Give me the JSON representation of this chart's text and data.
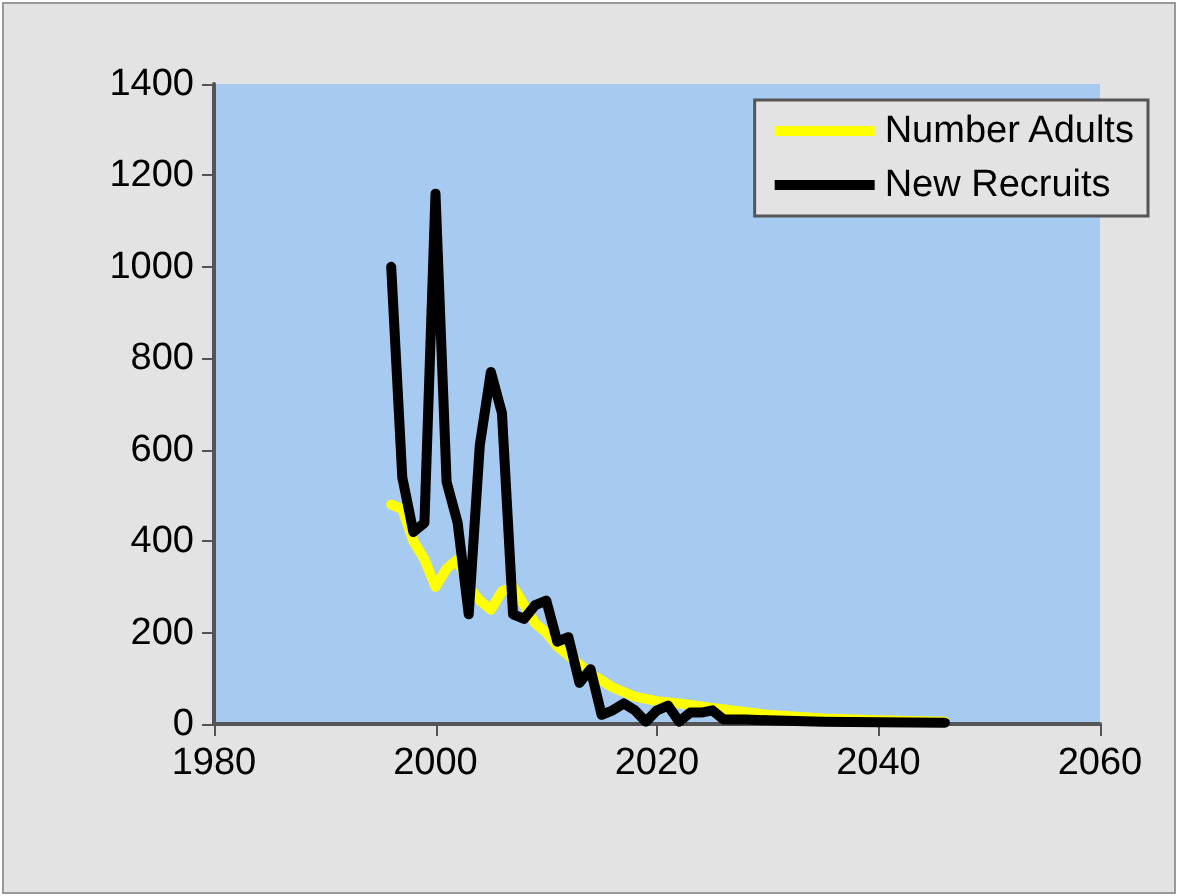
{
  "chart_data": {
    "type": "line",
    "xlim": [
      1980,
      2060
    ],
    "xticks": [
      1980,
      2000,
      2020,
      2040,
      2060
    ],
    "ylim": [
      0,
      1400
    ],
    "yticks": [
      0,
      200,
      400,
      600,
      800,
      1000,
      1200,
      1400
    ],
    "grid": false,
    "legend": "top right",
    "marker": "none",
    "series": [
      {
        "name": "Number Adults",
        "color": "#ffff00",
        "x": [
          1996,
          1997,
          1998,
          1999,
          2000,
          2001,
          2002,
          2003,
          2004,
          2005,
          2006,
          2007,
          2008,
          2009,
          2010,
          2011,
          2012,
          2013,
          2014,
          2015,
          2016,
          2017,
          2018,
          2019,
          2020,
          2022,
          2025,
          2030,
          2035,
          2040,
          2046
        ],
        "values": [
          480,
          470,
          400,
          360,
          300,
          340,
          360,
          300,
          270,
          250,
          290,
          300,
          260,
          220,
          200,
          170,
          150,
          130,
          110,
          95,
          80,
          70,
          60,
          55,
          50,
          45,
          35,
          20,
          12,
          8,
          5
        ]
      },
      {
        "name": "New Recruits",
        "color": "#000000",
        "x": [
          1996,
          1997,
          1998,
          1999,
          2000,
          2001,
          2002,
          2003,
          2004,
          2005,
          2006,
          2007,
          2008,
          2009,
          2010,
          2011,
          2012,
          2013,
          2014,
          2015,
          2016,
          2017,
          2018,
          2019,
          2020,
          2021,
          2022,
          2023,
          2024,
          2025,
          2026,
          2028,
          2030,
          2035,
          2040,
          2046
        ],
        "values": [
          1000,
          540,
          420,
          440,
          1160,
          530,
          440,
          240,
          610,
          770,
          680,
          240,
          230,
          260,
          270,
          180,
          190,
          90,
          120,
          20,
          30,
          45,
          30,
          5,
          30,
          40,
          5,
          25,
          25,
          30,
          10,
          10,
          8,
          5,
          4,
          3
        ]
      }
    ]
  }
}
